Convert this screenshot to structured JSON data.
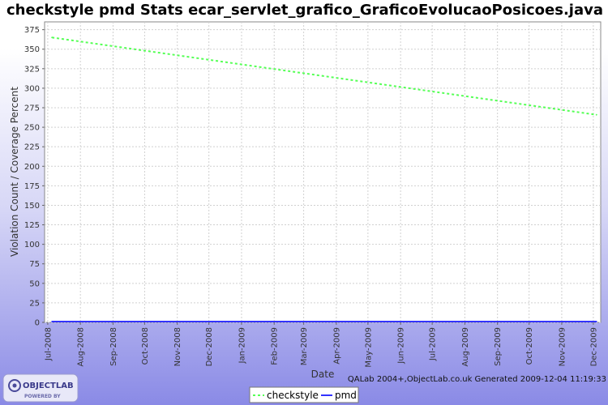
{
  "chart_data": {
    "type": "line",
    "title": "checkstyle pmd  Stats ecar_servlet_grafico_GraficoEvolucaoPosicoes.java",
    "xlabel": "Date",
    "ylabel": "Violation Count / Coverage Percent",
    "x_ticks": [
      "Jul-2008",
      "Aug-2008",
      "Sep-2008",
      "Oct-2008",
      "Nov-2008",
      "Dec-2008",
      "Jan-2009",
      "Feb-2009",
      "Mar-2009",
      "Apr-2009",
      "May-2009",
      "Jun-2009",
      "Jul-2009",
      "Aug-2009",
      "Sep-2009",
      "Oct-2009",
      "Nov-2009",
      "Dec-2009"
    ],
    "y_ticks": [
      "0",
      "25",
      "50",
      "75",
      "100",
      "125",
      "150",
      "175",
      "200",
      "225",
      "250",
      "275",
      "300",
      "325",
      "350",
      "375"
    ],
    "ylim": [
      0,
      385
    ],
    "xlim": [
      "2008-06-28",
      "2009-12-08"
    ],
    "grid": true,
    "legend_position": "bottom",
    "series": [
      {
        "name": "checkstyle",
        "color": "#55ff55",
        "style": "dashed",
        "x": [
          "2008-07-05",
          "2009-12-04"
        ],
        "y": [
          365,
          266
        ]
      },
      {
        "name": "pmd",
        "color": "#3333ff",
        "style": "solid",
        "x": [
          "2008-07-05",
          "2009-12-04"
        ],
        "y": [
          1,
          1
        ]
      }
    ],
    "annotation": "QALab 2004+,ObjectLab.co.uk Generated 2009-12-04 11:19:33"
  },
  "branding": {
    "logo_top": "OBJECTLAB",
    "logo_bottom": "POWERED BY"
  }
}
